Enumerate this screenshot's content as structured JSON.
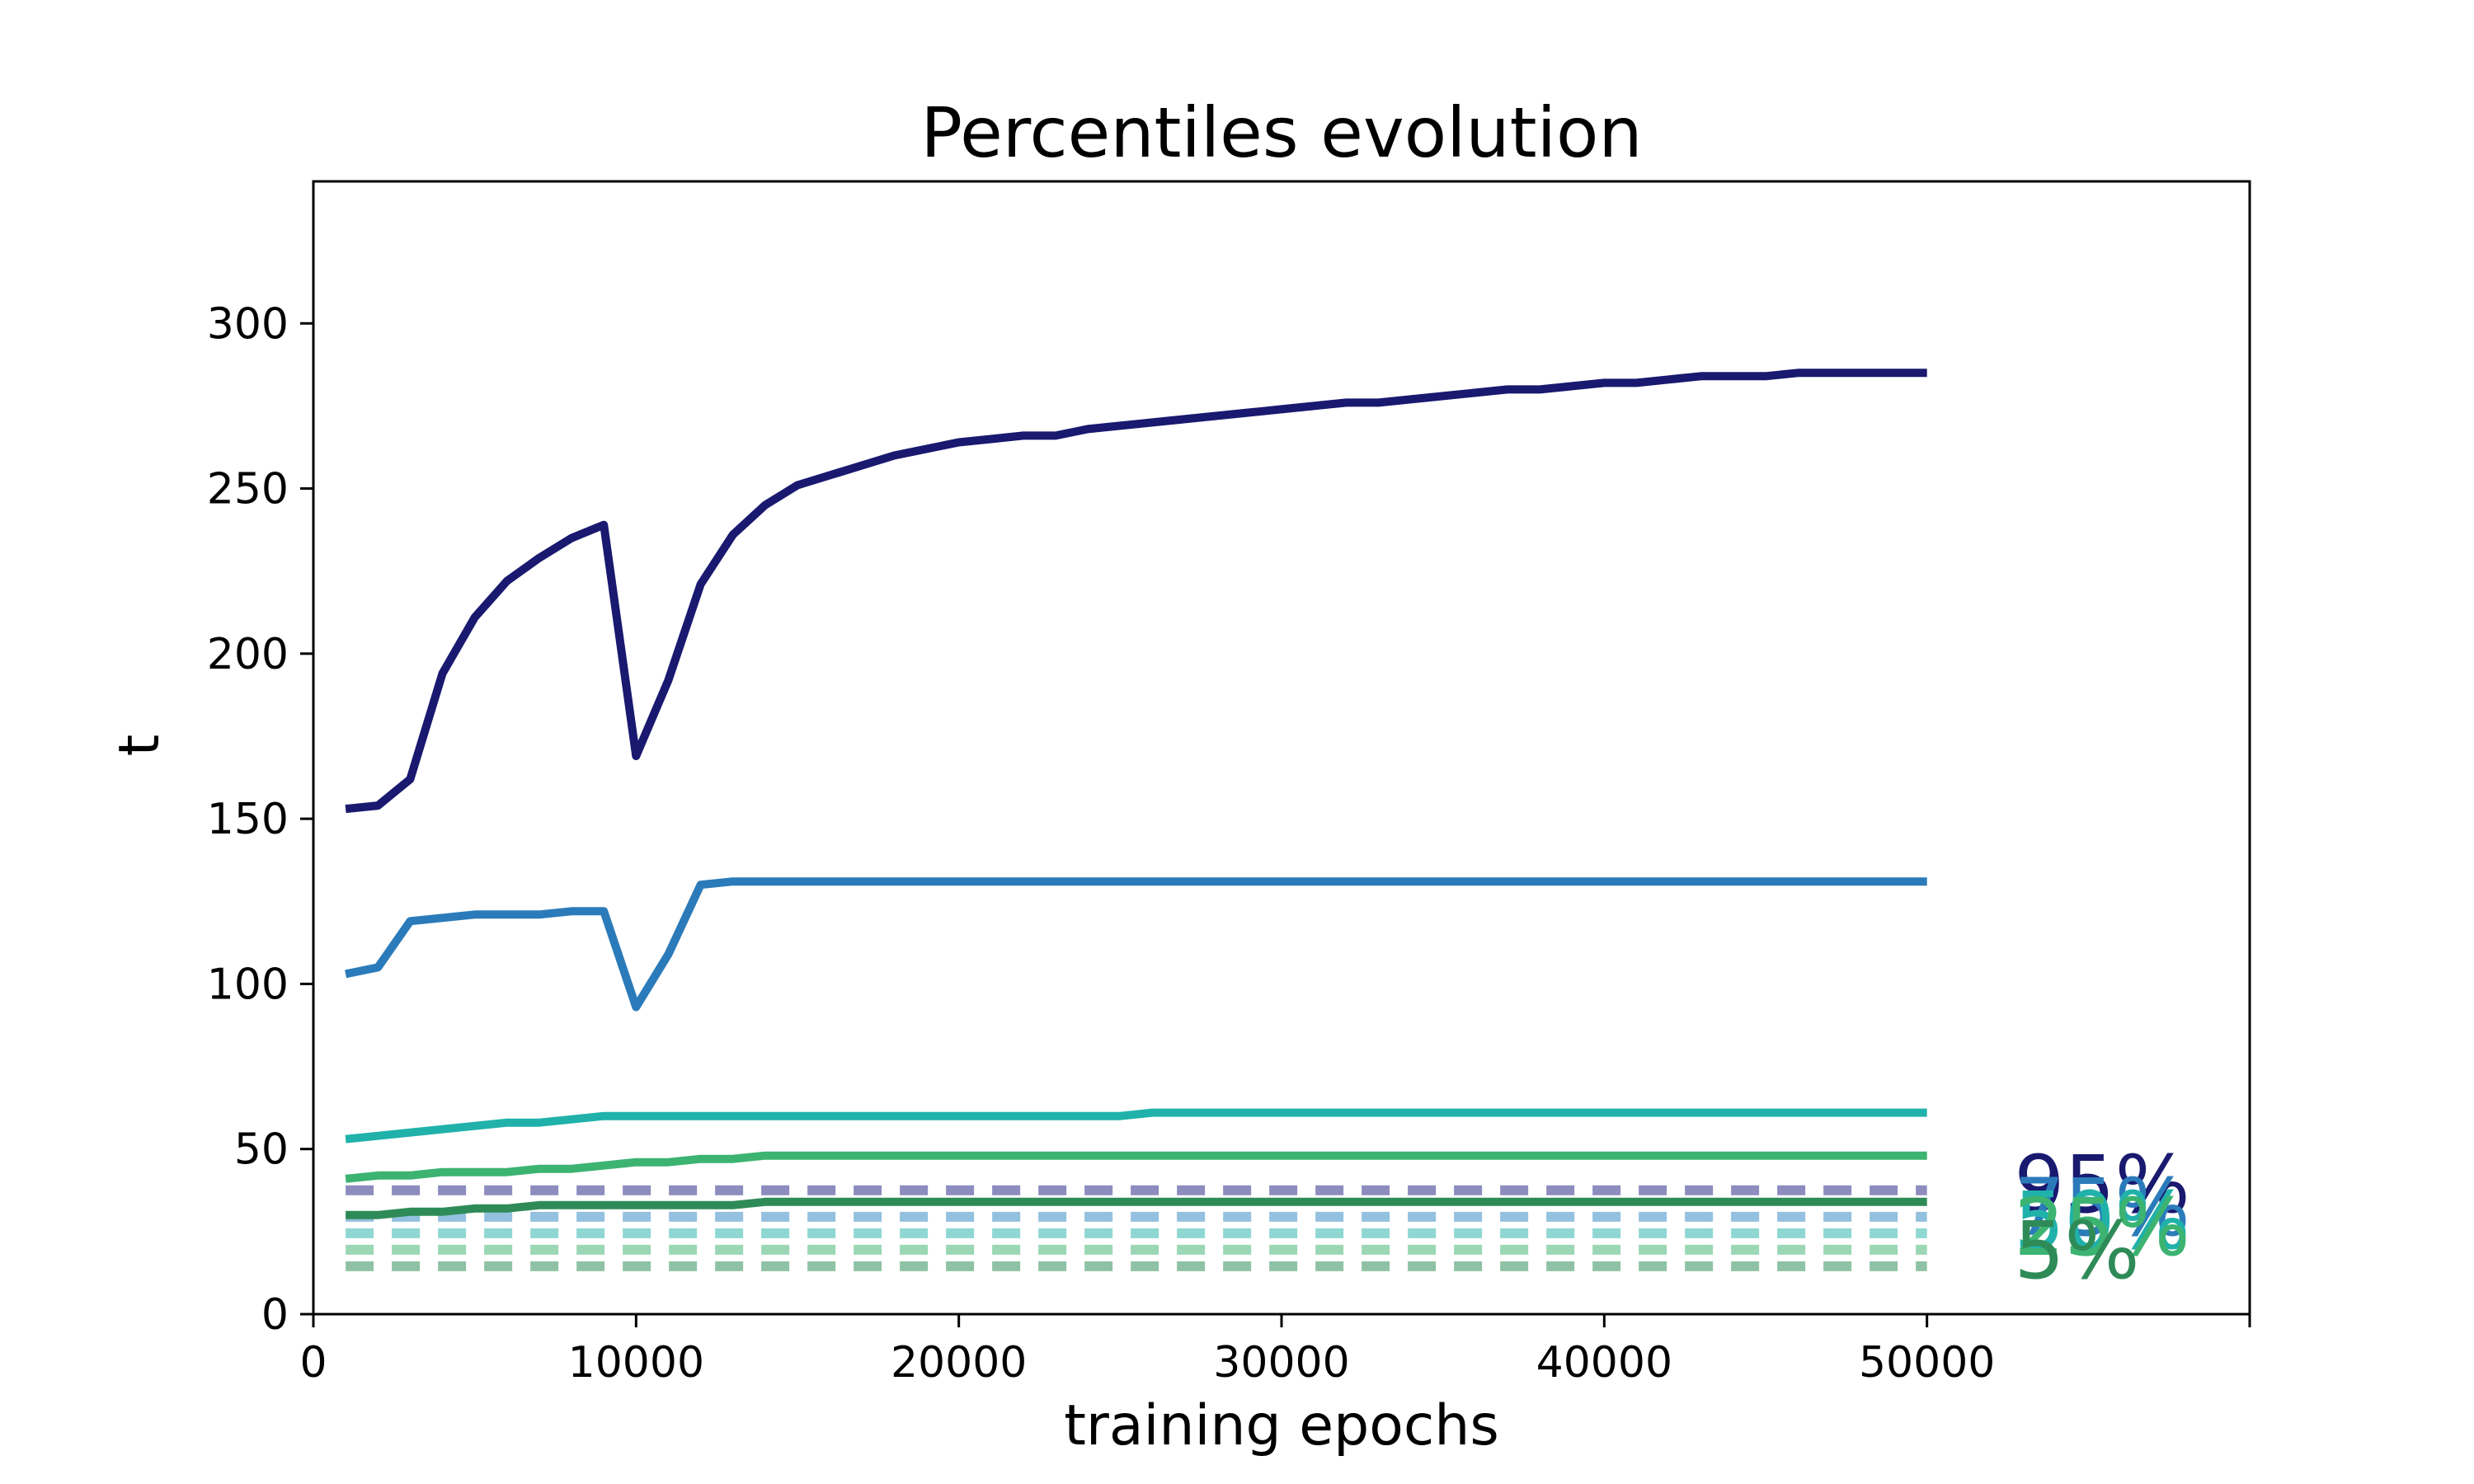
{
  "chart_data": {
    "type": "line",
    "title": "Percentiles evolution",
    "xlabel": "training epochs",
    "ylabel": "t",
    "xlim": [
      0,
      60000
    ],
    "ylim": [
      0,
      343
    ],
    "xticks": [
      "0",
      "10000",
      "20000",
      "30000",
      "40000",
      "50000"
    ],
    "yticks": [
      "0",
      "50",
      "100",
      "150",
      "200",
      "250",
      "300"
    ],
    "grid": false,
    "legend": "none",
    "x": [
      1000,
      2000,
      3000,
      4000,
      5000,
      6000,
      7000,
      8000,
      9000,
      10000,
      11000,
      12000,
      13000,
      14000,
      15000,
      16000,
      17000,
      18000,
      19000,
      20000,
      21000,
      22000,
      23000,
      24000,
      25000,
      26000,
      27000,
      28000,
      29000,
      30000,
      31000,
      32000,
      33000,
      34000,
      35000,
      36000,
      37000,
      38000,
      39000,
      40000,
      41000,
      42000,
      43000,
      44000,
      45000,
      46000,
      47000,
      48000,
      49000,
      50000
    ],
    "series": [
      {
        "name": "95%",
        "color": "#191970",
        "values": [
          153,
          154,
          162,
          194,
          211,
          222,
          229,
          235,
          239,
          169,
          192,
          221,
          236,
          245,
          251,
          254,
          257,
          260,
          262,
          264,
          265,
          266,
          266,
          268,
          269,
          270,
          271,
          272,
          273,
          274,
          275,
          276,
          276,
          277,
          278,
          279,
          280,
          280,
          281,
          282,
          282,
          283,
          284,
          284,
          284,
          285,
          285,
          285,
          285,
          285
        ]
      },
      {
        "name": "75%",
        "color": "#2b7bba",
        "values": [
          103,
          105,
          119,
          120,
          121,
          121,
          121,
          122,
          122,
          93,
          109,
          130,
          131,
          131,
          131,
          131,
          131,
          131,
          131,
          131,
          131,
          131,
          131,
          131,
          131,
          131,
          131,
          131,
          131,
          131,
          131,
          131,
          131,
          131,
          131,
          131,
          131,
          131,
          131,
          131,
          131,
          131,
          131,
          131,
          131,
          131,
          131,
          131,
          131,
          131
        ]
      },
      {
        "name": "50%",
        "color": "#20b2aa",
        "values": [
          53,
          54,
          55,
          56,
          57,
          58,
          58,
          59,
          60,
          60,
          60,
          60,
          60,
          60,
          60,
          60,
          60,
          60,
          60,
          60,
          60,
          60,
          60,
          60,
          60,
          61,
          61,
          61,
          61,
          61,
          61,
          61,
          61,
          61,
          61,
          61,
          61,
          61,
          61,
          61,
          61,
          61,
          61,
          61,
          61,
          61,
          61,
          61,
          61,
          61
        ]
      },
      {
        "name": "25%",
        "color": "#3cb371",
        "values": [
          41,
          42,
          42,
          43,
          43,
          43,
          44,
          44,
          45,
          46,
          46,
          47,
          47,
          48,
          48,
          48,
          48,
          48,
          48,
          48,
          48,
          48,
          48,
          48,
          48,
          48,
          48,
          48,
          48,
          48,
          48,
          48,
          48,
          48,
          48,
          48,
          48,
          48,
          48,
          48,
          48,
          48,
          48,
          48,
          48,
          48,
          48,
          48,
          48,
          48
        ]
      },
      {
        "name": "5%",
        "color": "#2e8b57",
        "values": [
          30,
          30,
          31,
          31,
          32,
          32,
          33,
          33,
          33,
          33,
          33,
          33,
          33,
          34,
          34,
          34,
          34,
          34,
          34,
          34,
          34,
          34,
          34,
          34,
          34,
          34,
          34,
          34,
          34,
          34,
          34,
          34,
          34,
          34,
          34,
          34,
          34,
          34,
          34,
          34,
          34,
          34,
          34,
          34,
          34,
          34,
          34,
          34,
          34,
          34
        ]
      }
    ],
    "reference_lines": [
      {
        "name": "95%",
        "y": 37.5,
        "color": "#8c8cbf"
      },
      {
        "name": "75%",
        "y": 29.5,
        "color": "#93c1df"
      },
      {
        "name": "50%",
        "y": 24.5,
        "color": "#8fd7d2"
      },
      {
        "name": "25%",
        "y": 19.5,
        "color": "#9bd7b4"
      },
      {
        "name": "5%",
        "y": 14.5,
        "color": "#8fc2a4"
      }
    ],
    "end_labels": [
      {
        "text": "95%",
        "color": "#191970"
      },
      {
        "text": "75%",
        "color": "#2b7bba"
      },
      {
        "text": "50%",
        "color": "#20b2aa"
      },
      {
        "text": "25%",
        "color": "#3cb371"
      },
      {
        "text": "5%",
        "color": "#2e8b57"
      }
    ]
  }
}
